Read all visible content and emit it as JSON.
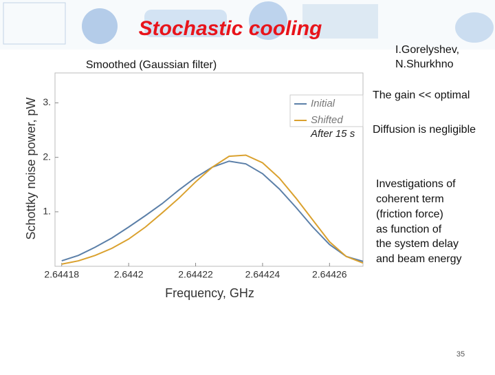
{
  "slide": {
    "title": "Stochastic cooling",
    "subtitle": "Smoothed (Gaussian filter)",
    "authors": [
      "I.Gorelyshev,",
      "N.Shurkhno"
    ],
    "notes": [
      "The gain << optimal",
      "Diffusion is negligible"
    ],
    "paragraph": [
      "Investigations of",
      "coherent term",
      "(friction force)",
      "as function of",
      "the system delay",
      "and beam energy"
    ],
    "page_number": "35"
  },
  "chart_data": {
    "type": "line",
    "x_label": "Frequency, GHz",
    "y_label": "Schottky noise power, pW",
    "annotation": "After 15 s",
    "x": [
      2.64418,
      2.644185,
      2.64419,
      2.644195,
      2.6442,
      2.644205,
      2.64421,
      2.644215,
      2.64422,
      2.644225,
      2.64423,
      2.644235,
      2.64424,
      2.644245,
      2.64425,
      2.644255,
      2.64426,
      2.644265,
      2.64427
    ],
    "series": [
      {
        "name": "Initial",
        "color": "#5b7fa8",
        "values": [
          0.1,
          0.2,
          0.35,
          0.52,
          0.72,
          0.93,
          1.15,
          1.4,
          1.63,
          1.82,
          1.93,
          1.88,
          1.7,
          1.42,
          1.08,
          0.72,
          0.4,
          0.18,
          0.09
        ]
      },
      {
        "name": "Shifted",
        "color": "#daa12e",
        "values": [
          0.04,
          0.1,
          0.2,
          0.33,
          0.5,
          0.72,
          0.98,
          1.25,
          1.55,
          1.82,
          2.02,
          2.04,
          1.9,
          1.62,
          1.25,
          0.85,
          0.45,
          0.18,
          0.06
        ]
      }
    ],
    "xlim": [
      2.644178,
      2.64427
    ],
    "ylim": [
      0,
      3.55
    ],
    "xticks": [
      2.64418,
      2.6442,
      2.64422,
      2.64424,
      2.64426
    ],
    "yticks": [
      {
        "value": 1,
        "label": "1."
      },
      {
        "value": 2,
        "label": "2."
      },
      {
        "value": 3,
        "label": "3."
      }
    ],
    "legend": "upper right"
  }
}
